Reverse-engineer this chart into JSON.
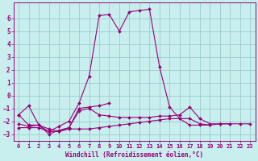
{
  "xlabel": "Windchill (Refroidissement éolien,°C)",
  "bg_color": "#c8eeee",
  "grid_color": "#99cccc",
  "line_color": "#990077",
  "xlim": [
    -0.5,
    23.5
  ],
  "ylim": [
    -3.5,
    7.2
  ],
  "xticks": [
    0,
    1,
    2,
    3,
    4,
    5,
    6,
    7,
    8,
    9,
    10,
    11,
    12,
    13,
    14,
    15,
    16,
    17,
    18,
    19,
    20,
    21,
    22,
    23
  ],
  "yticks": [
    -3,
    -2,
    -1,
    0,
    1,
    2,
    3,
    4,
    5,
    6
  ],
  "lines": [
    {
      "x": [
        0,
        1,
        2,
        3,
        4,
        5,
        6,
        7,
        8,
        9,
        10,
        11,
        12,
        13,
        14,
        15,
        16,
        17,
        18,
        19,
        20,
        21,
        22,
        23
      ],
      "y": [
        -1.5,
        -0.8,
        -2.3,
        -2.8,
        -2.4,
        -2.0,
        -0.6,
        1.5,
        6.2,
        6.3,
        5.0,
        6.5,
        6.6,
        6.7,
        2.2,
        -0.9,
        -1.8,
        -2.3,
        -2.3,
        -2.3,
        null,
        null,
        null,
        null
      ]
    },
    {
      "x": [
        0,
        1,
        2,
        3,
        4,
        5,
        6,
        7,
        8,
        9,
        10,
        11,
        12,
        13,
        14,
        15,
        16,
        17,
        18,
        19,
        20,
        21,
        22,
        23
      ],
      "y": [
        -1.5,
        -2.3,
        -2.3,
        -3.0,
        -2.7,
        -2.5,
        -1.0,
        -0.9,
        -0.8,
        -0.6,
        null,
        null,
        null,
        null,
        null,
        null,
        null,
        null,
        null,
        null,
        null,
        null,
        null,
        null
      ]
    },
    {
      "x": [
        0,
        1,
        2,
        3,
        4,
        5,
        6,
        7,
        8,
        9,
        10,
        11,
        12,
        13,
        14,
        15,
        16,
        17,
        18,
        19,
        20,
        21,
        22,
        23
      ],
      "y": [
        -2.2,
        -2.4,
        -2.3,
        -2.6,
        -2.8,
        -2.5,
        -1.2,
        -1.0,
        -1.5,
        -1.6,
        -1.7,
        -1.7,
        -1.7,
        -1.7,
        -1.6,
        -1.6,
        -1.5,
        -0.9,
        -1.8,
        -2.2,
        -2.2,
        -2.2,
        null,
        null
      ]
    },
    {
      "x": [
        0,
        1,
        2,
        3,
        4,
        5,
        6,
        7,
        8,
        9,
        10,
        11,
        12,
        13,
        14,
        15,
        16,
        17,
        18,
        19,
        20,
        21,
        22,
        23
      ],
      "y": [
        -2.5,
        -2.5,
        -2.5,
        -2.8,
        -2.8,
        -2.6,
        -2.6,
        -2.6,
        -2.5,
        -2.4,
        -2.3,
        -2.2,
        -2.1,
        -2.0,
        -1.9,
        -1.8,
        -1.8,
        -1.8,
        -2.2,
        -2.3,
        -2.2,
        -2.2,
        -2.2,
        -2.2
      ]
    }
  ],
  "marker": "D",
  "marker_size": 2.0,
  "linewidth": 0.8,
  "tick_fontsize": 5.0,
  "xlabel_fontsize": 5.5
}
